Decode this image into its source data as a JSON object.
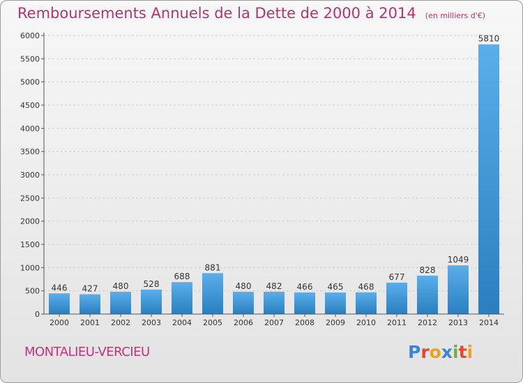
{
  "header": {
    "title": "Remboursements Annuels de la Dette de 2000 à 2014",
    "unit": "(en milliers d'€)"
  },
  "footer": {
    "commune": "MONTALIEU-VERCIEU",
    "logo_letters": [
      {
        "char": "P",
        "color": "#3d83d8"
      },
      {
        "char": "r",
        "color": "#e8462d"
      },
      {
        "char": "o",
        "color": "#f0a11c"
      },
      {
        "char": "x",
        "color": "#3d83d8"
      },
      {
        "char": "i",
        "color": "#6cb33f"
      },
      {
        "char": "t",
        "color": "#e8462d"
      },
      {
        "char": "i",
        "color": "#f0a11c"
      }
    ]
  },
  "colors": {
    "title": "#b7336f",
    "bar_top": "#5aaeea",
    "bar_bottom": "#2a7fc0",
    "grid": "#cfcfcf",
    "axis": "#555555"
  },
  "chart_data": {
    "type": "bar",
    "title": "Remboursements Annuels de la Dette de 2000 à 2014",
    "subtitle": "(en milliers d'€)",
    "categories": [
      "2000",
      "2001",
      "2002",
      "2003",
      "2004",
      "2005",
      "2006",
      "2007",
      "2008",
      "2009",
      "2010",
      "2011",
      "2012",
      "2013",
      "2014"
    ],
    "values": [
      446,
      427,
      480,
      528,
      688,
      881,
      480,
      482,
      466,
      465,
      468,
      677,
      828,
      1049,
      5810
    ],
    "ylim": [
      0,
      6000
    ],
    "yticks": [
      0,
      500,
      1000,
      1500,
      2000,
      2500,
      3000,
      3500,
      4000,
      4500,
      5000,
      5500,
      6000
    ],
    "grid": true,
    "data_labels": true
  }
}
